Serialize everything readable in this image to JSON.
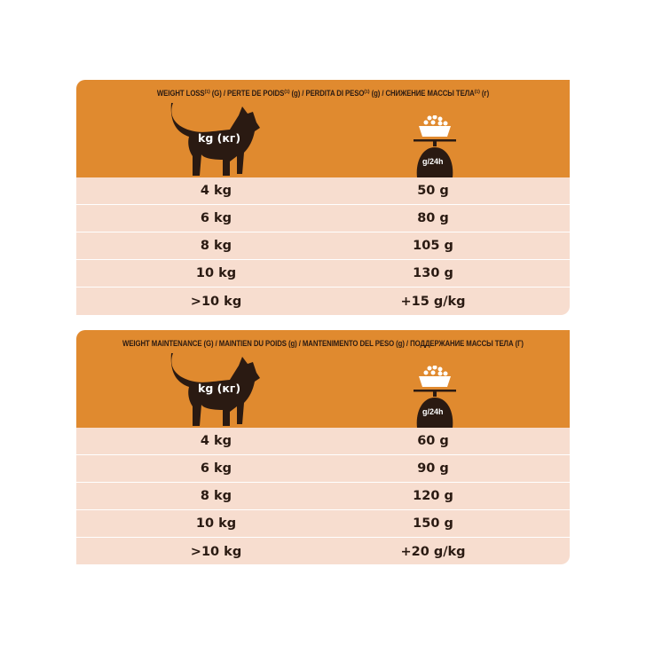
{
  "colors": {
    "header": "#e08a2f",
    "rows": "#f7ddcf",
    "icon": "#2a1a12"
  },
  "tables": [
    {
      "title": "WEIGHT LOSS⁽¹⁾ (G) / PERTE DE POIDS⁽¹⁾ (g) / PERDITA DI PESO⁽¹⁾ (g) / СНИЖЕНИЕ МАССЫ ТЕЛА⁽¹⁾ (г)",
      "cat_label": "kg (кг)",
      "scale_label": "g/24h",
      "rows": [
        {
          "weight": "4 kg",
          "amount": "50 g"
        },
        {
          "weight": "6 kg",
          "amount": "80 g"
        },
        {
          "weight": "8 kg",
          "amount": "105 g"
        },
        {
          "weight": "10 kg",
          "amount": "130 g"
        },
        {
          "weight": ">10 kg",
          "amount": "+15 g/kg"
        }
      ]
    },
    {
      "title": "WEIGHT MAINTENANCE (G) / MAINTIEN DU POIDS (g) / MANTENIMENTO DEL PESO (g) / ПОДДЕРЖАНИЕ МАССЫ ТЕЛА (Г)",
      "cat_label": "kg (кг)",
      "scale_label": "g/24h",
      "rows": [
        {
          "weight": "4 kg",
          "amount": "60 g"
        },
        {
          "weight": "6 kg",
          "amount": "90 g"
        },
        {
          "weight": "8 kg",
          "amount": "120 g"
        },
        {
          "weight": "10 kg",
          "amount": "150 g"
        },
        {
          "weight": ">10 kg",
          "amount": "+20 g/kg"
        }
      ]
    }
  ]
}
